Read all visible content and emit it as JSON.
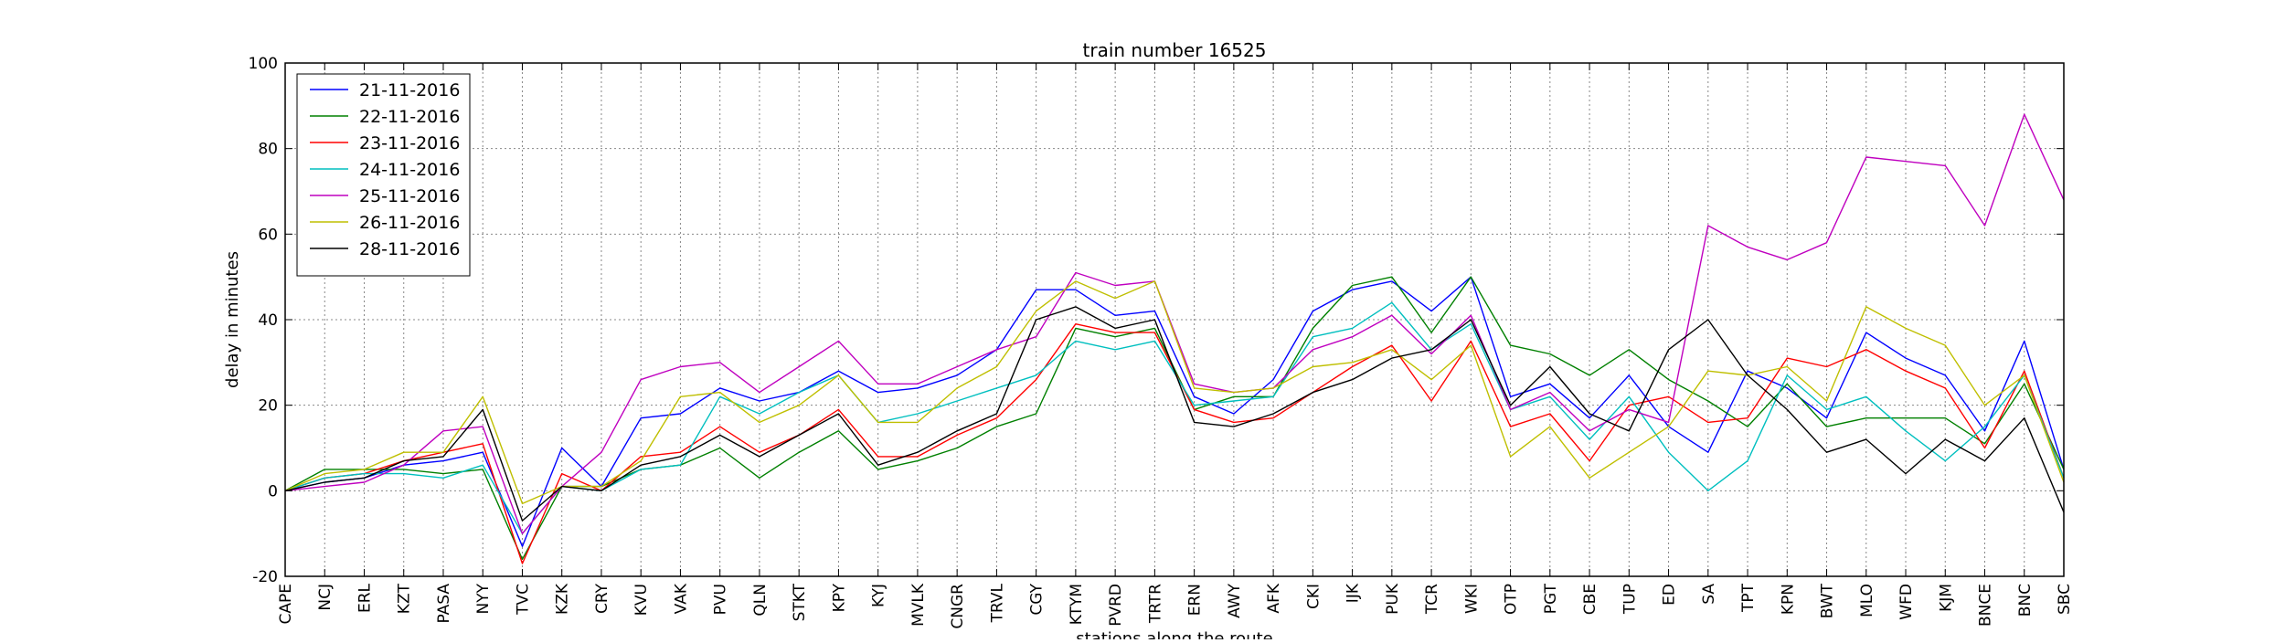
{
  "chart_data": {
    "type": "line",
    "title": "train number 16525",
    "xlabel": "stations along the route",
    "ylabel": "delay in minutes",
    "ylim": [
      -20,
      100
    ],
    "yticks": [
      -20,
      0,
      20,
      40,
      60,
      80,
      100
    ],
    "grid": true,
    "legend_position": "top-left",
    "categories": [
      "CAPE",
      "NCJ",
      "ERL",
      "KZT",
      "PASA",
      "NYY",
      "TVC",
      "KZK",
      "CRY",
      "KVU",
      "VAK",
      "PVU",
      "QLN",
      "STKT",
      "KPY",
      "KYJ",
      "MVLK",
      "CNGR",
      "TRVL",
      "CGY",
      "KTYM",
      "PVRD",
      "TRTR",
      "ERN",
      "AWY",
      "AFK",
      "CKI",
      "IJK",
      "PUK",
      "TCR",
      "WKI",
      "OTP",
      "PGT",
      "CBE",
      "TUP",
      "ED",
      "SA",
      "TPT",
      "KPN",
      "BWT",
      "MLO",
      "WFD",
      "KJM",
      "BNCE",
      "BNC",
      "SBC"
    ],
    "series": [
      {
        "name": "21-11-2016",
        "color": "#0000ff",
        "values": [
          0,
          2,
          3,
          6,
          7,
          9,
          -13,
          10,
          1,
          17,
          18,
          24,
          21,
          23,
          28,
          23,
          24,
          27,
          33,
          47,
          47,
          41,
          42,
          22,
          18,
          26,
          42,
          47,
          49,
          42,
          50,
          22,
          25,
          17,
          27,
          15,
          9,
          28,
          24,
          17,
          37,
          31,
          27,
          14,
          35,
          5
        ]
      },
      {
        "name": "22-11-2016",
        "color": "#008000",
        "values": [
          0,
          5,
          5,
          5,
          4,
          5,
          -16,
          1,
          1,
          5,
          6,
          10,
          3,
          9,
          14,
          5,
          7,
          10,
          15,
          18,
          38,
          36,
          38,
          19,
          22,
          22,
          38,
          48,
          50,
          37,
          50,
          34,
          32,
          27,
          33,
          26,
          21,
          15,
          25,
          15,
          17,
          17,
          17,
          11,
          25,
          5
        ]
      },
      {
        "name": "23-11-2016",
        "color": "#ff0000",
        "values": [
          0,
          3,
          4,
          7,
          9,
          11,
          -17,
          4,
          0,
          8,
          9,
          15,
          9,
          13,
          19,
          8,
          8,
          13,
          17,
          26,
          39,
          37,
          37,
          19,
          16,
          17,
          23,
          29,
          34,
          21,
          35,
          15,
          18,
          7,
          20,
          22,
          16,
          17,
          31,
          29,
          33,
          28,
          24,
          10,
          28,
          3
        ]
      },
      {
        "name": "24-11-2016",
        "color": "#00bfbf",
        "values": [
          0,
          3,
          4,
          4,
          3,
          6,
          -10,
          1,
          0,
          5,
          6,
          22,
          18,
          23,
          27,
          16,
          18,
          21,
          24,
          27,
          35,
          33,
          35,
          20,
          21,
          22,
          36,
          38,
          44,
          33,
          39,
          19,
          22,
          12,
          22,
          9,
          0,
          7,
          27,
          19,
          22,
          14,
          7,
          15,
          27,
          3
        ]
      },
      {
        "name": "25-11-2016",
        "color": "#bf00bf",
        "values": [
          0,
          1,
          2,
          6,
          14,
          15,
          -10,
          1,
          9,
          26,
          29,
          30,
          23,
          29,
          35,
          25,
          25,
          29,
          33,
          36,
          51,
          48,
          49,
          25,
          23,
          24,
          33,
          36,
          41,
          32,
          41,
          19,
          23,
          14,
          19,
          16,
          62,
          57,
          54,
          58,
          78,
          77,
          76,
          62,
          88,
          68
        ]
      },
      {
        "name": "26-11-2016",
        "color": "#bfbf00",
        "values": [
          0,
          4,
          5,
          9,
          9,
          22,
          -3,
          1,
          1,
          7,
          22,
          23,
          16,
          20,
          27,
          16,
          16,
          24,
          29,
          42,
          49,
          45,
          49,
          24,
          23,
          24,
          29,
          30,
          33,
          26,
          34,
          8,
          15,
          3,
          9,
          15,
          28,
          27,
          29,
          21,
          43,
          38,
          34,
          20,
          27,
          2
        ]
      },
      {
        "name": "28-11-2016",
        "color": "#000000",
        "values": [
          0,
          2,
          3,
          7,
          8,
          19,
          -7,
          1,
          0,
          6,
          8,
          13,
          8,
          13,
          18,
          6,
          9,
          14,
          18,
          40,
          43,
          38,
          40,
          16,
          15,
          18,
          23,
          26,
          31,
          33,
          40,
          20,
          29,
          18,
          14,
          33,
          40,
          27,
          19,
          9,
          12,
          4,
          12,
          7,
          17,
          -5
        ]
      }
    ]
  }
}
